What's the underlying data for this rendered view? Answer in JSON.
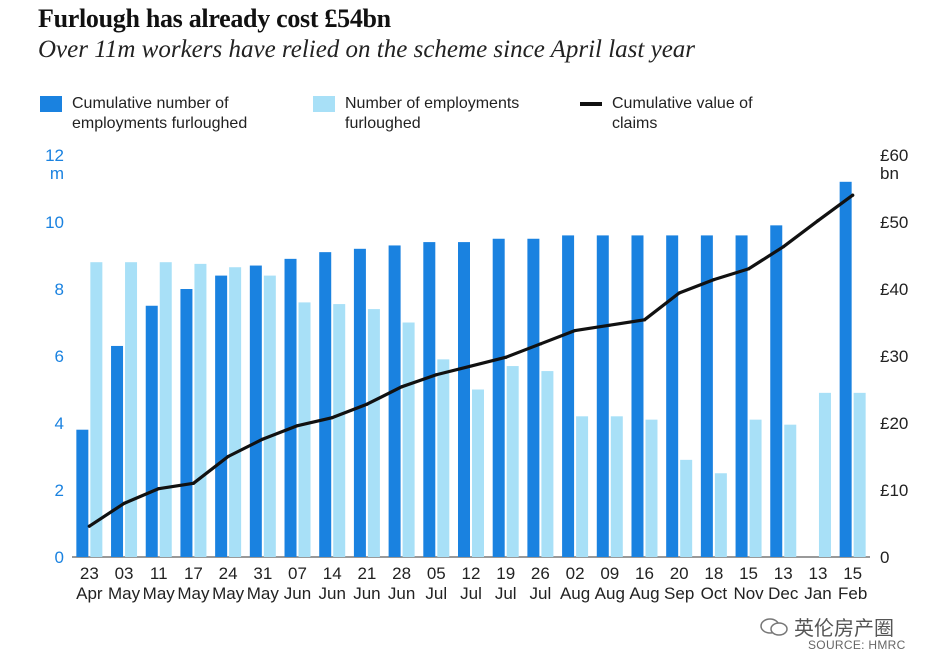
{
  "title": "Furlough has already cost £54bn",
  "subtitle": "Over 11m workers have relied on the scheme since April last year",
  "legend": [
    {
      "label_line1": "Cumulative number of",
      "label_line2": "employments furloughed",
      "color": "#1a82e0"
    },
    {
      "label_line1": "Number of employments",
      "label_line2": "furloughed",
      "color": "#a8e0f7"
    },
    {
      "label_line1": "Cumulative value of",
      "label_line2": "claims",
      "color": "#111111"
    }
  ],
  "watermark": "英伦房产圈",
  "source": "SOURCE: HMRC",
  "chart_data": {
    "type": "bar",
    "categories": [
      "23 Apr",
      "03 May",
      "11 May",
      "17 May",
      "24 May",
      "31 May",
      "07 Jun",
      "14 Jun",
      "21 Jun",
      "28 Jun",
      "05 Jul",
      "12 Jul",
      "19 Jul",
      "26 Jul",
      "02 Aug",
      "09 Aug",
      "16 Aug",
      "20 Sep",
      "18 Oct",
      "15 Nov",
      "13 Dec",
      "13 Jan",
      "15 Feb"
    ],
    "x_day": [
      "23",
      "03",
      "11",
      "17",
      "24",
      "31",
      "07",
      "14",
      "21",
      "28",
      "05",
      "12",
      "19",
      "26",
      "02",
      "09",
      "16",
      "20",
      "18",
      "15",
      "13",
      "13",
      "15"
    ],
    "x_month": [
      "Apr",
      "May",
      "May",
      "May",
      "May",
      "May",
      "Jun",
      "Jun",
      "Jun",
      "Jun",
      "Jul",
      "Jul",
      "Jul",
      "Jul",
      "Aug",
      "Aug",
      "Aug",
      "Sep",
      "Oct",
      "Nov",
      "Dec",
      "Jan",
      "Feb"
    ],
    "series": [
      {
        "name": "Cumulative number of employments furloughed",
        "type": "bar",
        "axis": "left",
        "color": "#1a82e0",
        "values": [
          3.8,
          6.3,
          7.5,
          8.0,
          8.4,
          8.7,
          8.9,
          9.1,
          9.2,
          9.3,
          9.4,
          9.4,
          9.5,
          9.5,
          9.6,
          9.6,
          9.6,
          9.6,
          9.6,
          9.6,
          9.9,
          null,
          11.2
        ]
      },
      {
        "name": "Number of employments furloughed",
        "type": "bar",
        "axis": "left",
        "color": "#a8e0f7",
        "values": [
          8.8,
          8.8,
          8.8,
          8.75,
          8.65,
          8.4,
          7.6,
          7.55,
          7.4,
          7.0,
          5.9,
          5.0,
          5.7,
          5.55,
          4.2,
          4.2,
          4.1,
          2.9,
          2.5,
          4.1,
          3.95,
          4.9,
          4.9
        ]
      },
      {
        "name": "Cumulative value of claims",
        "type": "line",
        "axis": "right",
        "color": "#111111",
        "values": [
          4.6,
          8.0,
          10.2,
          11.0,
          15.0,
          17.6,
          19.6,
          20.8,
          22.8,
          25.4,
          27.2,
          28.5,
          29.8,
          31.8,
          33.8,
          34.6,
          35.4,
          39.4,
          41.4,
          43.0,
          46.3,
          50.2,
          54.0
        ]
      }
    ],
    "left_axis": {
      "min": 0,
      "max": 12,
      "ticks": [
        0,
        2,
        4,
        6,
        8,
        10,
        12
      ],
      "unit_label": "m",
      "color": "#1a82e0"
    },
    "right_axis": {
      "min": 0,
      "max": 60,
      "ticks": [
        0,
        10,
        20,
        30,
        40,
        50,
        60
      ],
      "tick_labels": [
        "0",
        "£10",
        "£20",
        "£30",
        "£40",
        "£50",
        "£60"
      ],
      "unit_label": "bn",
      "color": "#222222"
    },
    "grid": false
  }
}
